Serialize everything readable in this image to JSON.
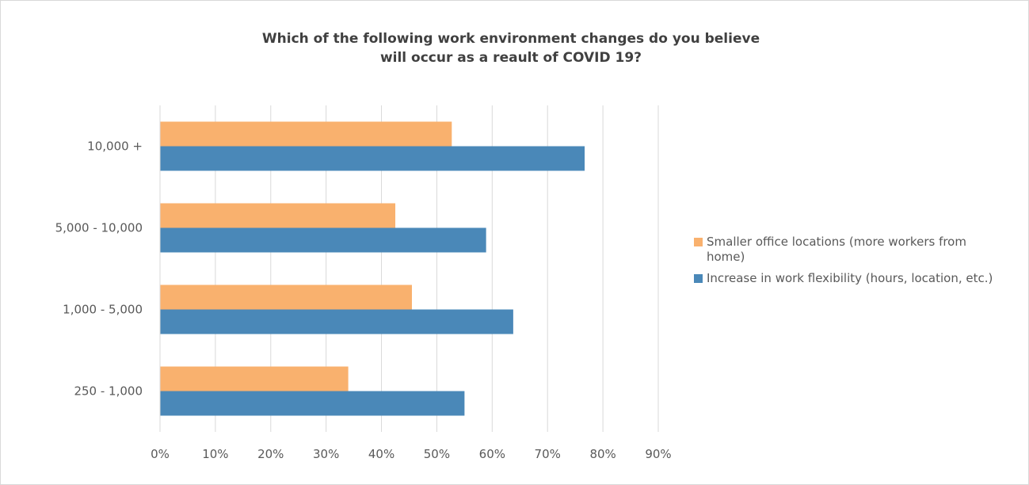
{
  "chart_data": {
    "type": "bar",
    "orientation": "horizontal",
    "title_lines": [
      "Which of the following work environment changes do you believe",
      "will occur as a reault of COVID 19?"
    ],
    "categories": [
      "250 - 1,000",
      "1,000 - 5,000",
      "5,000 - 10,000",
      "10,000 +"
    ],
    "series": [
      {
        "name": "Smaller office locations (more workers from home)",
        "color": "#F9B16E",
        "values": [
          0.34,
          0.455,
          0.425,
          0.527
        ]
      },
      {
        "name": "Increase in work flexibility (hours, location, etc.)",
        "color": "#4A88B8",
        "values": [
          0.55,
          0.638,
          0.589,
          0.767
        ]
      }
    ],
    "xlim": [
      0,
      0.9
    ],
    "x_ticks": [
      "0%",
      "10%",
      "20%",
      "30%",
      "40%",
      "50%",
      "60%",
      "70%",
      "80%",
      "90%"
    ],
    "grid": true,
    "legend_position": "right"
  }
}
